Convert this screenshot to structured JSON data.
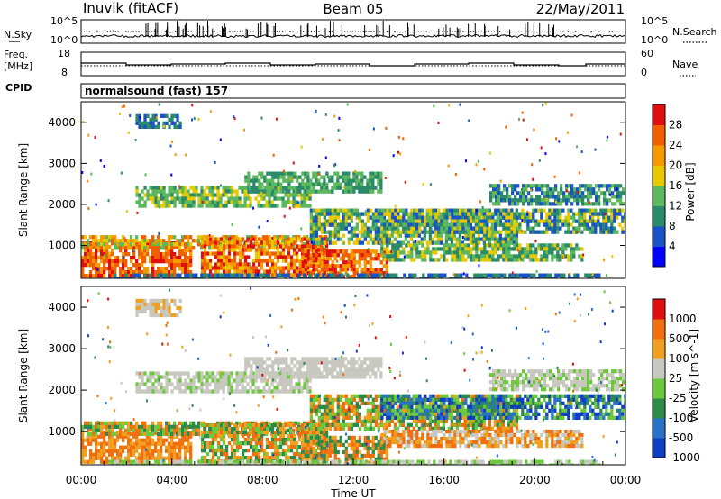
{
  "header": {
    "station": "Inuvik (fitACF)",
    "beam": "Beam 05",
    "date": "22/May/2011"
  },
  "top_panels": {
    "nsky_label": "N.Sky",
    "nsky_ticks": [
      "10^5",
      "10^0"
    ],
    "nsearch_label": "N.Search",
    "nsearch_ticks": [
      "10^5",
      "10^0"
    ],
    "freq_label_1": "Freq.",
    "freq_label_2": "[MHz]",
    "freq_ticks": [
      "18",
      "8"
    ],
    "nave_label": "Nave",
    "nave_ticks": [
      "60",
      "0"
    ],
    "cpid_label": "CPID",
    "cpid_text": "normalsound (fast) 157"
  },
  "chart_data": [
    {
      "type": "heatmap",
      "name": "power",
      "ylabel": "Slant Range [km]",
      "xlabel": "",
      "yticks": [
        "1000",
        "2000",
        "3000",
        "4000"
      ],
      "ylim": [
        200,
        4500
      ],
      "xlim": [
        "00:00",
        "24:00"
      ],
      "colorbar_label": "Power [dB]",
      "colorbar_ticks": [
        "28",
        "24",
        "20",
        "16",
        "12",
        "8",
        "4"
      ],
      "colors": [
        "#0000ff",
        "#1a53c8",
        "#2a8a6a",
        "#5cb85c",
        "#e8c800",
        "#f59a00",
        "#f06000",
        "#e01010"
      ]
    },
    {
      "type": "heatmap",
      "name": "velocity",
      "ylabel": "Slant Range [km]",
      "xlabel": "Time UT",
      "yticks": [
        "1000",
        "2000",
        "3000",
        "4000"
      ],
      "xticks": [
        "00:00",
        "04:00",
        "08:00",
        "12:00",
        "16:00",
        "20:00",
        "00:00"
      ],
      "ylim": [
        200,
        4500
      ],
      "xlim": [
        "00:00",
        "24:00"
      ],
      "colorbar_label": "Velocity [m s^-1]",
      "colorbar_ticks": [
        "1000",
        "500",
        "100",
        "25",
        "-25",
        "-100",
        "-500",
        "-1000"
      ],
      "colors": [
        "#1040c0",
        "#2a72c8",
        "#2e8a4a",
        "#6cc83c",
        "#c8c8c0",
        "#f0a020",
        "#f07010",
        "#e01010"
      ]
    }
  ]
}
